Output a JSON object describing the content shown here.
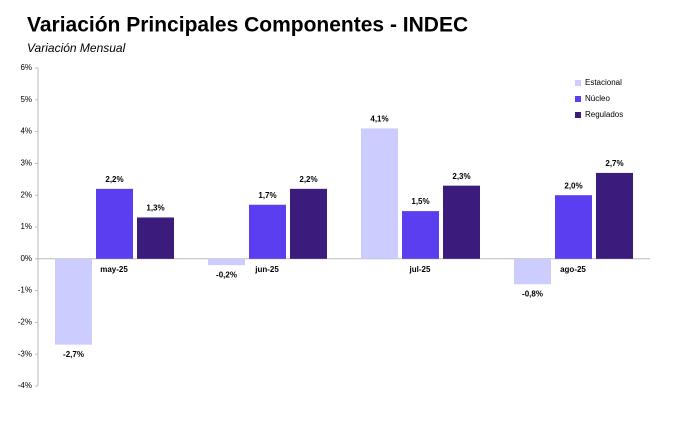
{
  "chart_data": {
    "type": "bar",
    "title": "Variación Principales Componentes - INDEC",
    "subtitle": "Variación Mensual",
    "categories": [
      "may-25",
      "jun-25",
      "jul-25",
      "ago-25"
    ],
    "series": [
      {
        "name": "Estacional",
        "color": "#ccccff",
        "values": [
          -2.7,
          -0.2,
          4.1,
          -0.8
        ],
        "value_labels": [
          "-2,7%",
          "-0,2%",
          "4,1%",
          "-0,8%"
        ]
      },
      {
        "name": "Núcleo",
        "color": "#5b3ef0",
        "values": [
          2.2,
          1.7,
          1.5,
          2.0
        ],
        "value_labels": [
          "2,2%",
          "1,7%",
          "1,5%",
          "2,0%"
        ]
      },
      {
        "name": "Regulados",
        "color": "#3b1c7c",
        "values": [
          1.3,
          2.2,
          2.3,
          2.7
        ],
        "value_labels": [
          "1,3%",
          "2,2%",
          "2,3%",
          "2,7%"
        ]
      }
    ],
    "ylim": [
      -4,
      6
    ],
    "yticks": [
      {
        "value": -4,
        "label": "-4%"
      },
      {
        "value": -3,
        "label": "-3%"
      },
      {
        "value": -2,
        "label": "-2%"
      },
      {
        "value": -1,
        "label": "-1%"
      },
      {
        "value": 0,
        "label": "0%"
      },
      {
        "value": 1,
        "label": "1%"
      },
      {
        "value": 2,
        "label": "2%"
      },
      {
        "value": 3,
        "label": "3%"
      },
      {
        "value": 4,
        "label": "4%"
      },
      {
        "value": 5,
        "label": "5%"
      },
      {
        "value": 6,
        "label": "6%"
      }
    ],
    "legend": "top-right"
  }
}
